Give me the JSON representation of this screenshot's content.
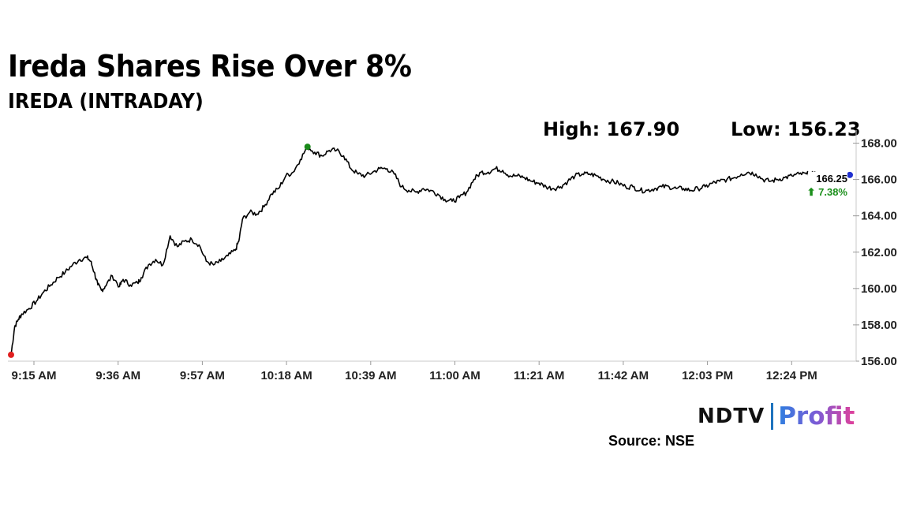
{
  "header": {
    "title": "Ireda Shares Rise Over 8%",
    "subtitle": "IREDA (INTRADAY)"
  },
  "stats": {
    "high": "High: 167.90",
    "low": "Low: 156.23"
  },
  "chart_data": {
    "type": "line",
    "title": "IREDA (INTRADAY)",
    "xlabel": "",
    "ylabel": "",
    "x_ticks": [
      "9:15 AM",
      "9:36 AM",
      "9:57 AM",
      "10:18 AM",
      "10:39 AM",
      "11:00 AM",
      "11:21 AM",
      "11:42 AM",
      "12:03 PM",
      "12:24 PM"
    ],
    "x_range_minutes": [
      0,
      232
    ],
    "ylim": [
      156,
      168.5
    ],
    "y_ticks": [
      156,
      158,
      160,
      162,
      164,
      166,
      168
    ],
    "y_tick_labels": [
      "156.00",
      "158.00",
      "160.00",
      "162.00",
      "164.00",
      "166.00",
      "168.00"
    ],
    "series": [
      {
        "name": "IREDA",
        "minutes": [
          0,
          1,
          2,
          3,
          5,
          7,
          9,
          11,
          13,
          15,
          17,
          19,
          21,
          22,
          23,
          24,
          25,
          26,
          28,
          30,
          31,
          33,
          35,
          36,
          38,
          40,
          42,
          44,
          46,
          48,
          50,
          52,
          54,
          56,
          58,
          60,
          62,
          63,
          64,
          66,
          68,
          70,
          72,
          74,
          76,
          78,
          80,
          82,
          84,
          86,
          88,
          90,
          92,
          94,
          96,
          98,
          100,
          102,
          104,
          106,
          108,
          110,
          112,
          114,
          116,
          118,
          120,
          122,
          124,
          126,
          128,
          130,
          132,
          134,
          136,
          138,
          140,
          142,
          144,
          146,
          148,
          150,
          152,
          154,
          156,
          158,
          160,
          162,
          164,
          166,
          168,
          170,
          172,
          174,
          176,
          178,
          180,
          182,
          184,
          186,
          188,
          190,
          192,
          194,
          196,
          198,
          200,
          202,
          204,
          206,
          208,
          210,
          212,
          214,
          216,
          218,
          220,
          222,
          224,
          226,
          228,
          229,
          230,
          231,
          232
        ],
        "values": [
          156.35,
          157.9,
          158.3,
          158.6,
          158.9,
          159.3,
          159.8,
          160.2,
          160.6,
          160.9,
          161.3,
          161.6,
          161.7,
          161.5,
          160.9,
          160.2,
          159.9,
          160.1,
          160.7,
          160.1,
          160.5,
          160.2,
          160.3,
          160.6,
          161.3,
          161.6,
          161.3,
          162.9,
          162.3,
          162.6,
          162.7,
          162.4,
          161.5,
          161.3,
          161.5,
          161.8,
          162.1,
          162.6,
          163.8,
          164.2,
          164.1,
          164.5,
          165.2,
          165.5,
          166.2,
          166.4,
          167.1,
          167.8,
          167.5,
          167.3,
          167.6,
          167.6,
          167.3,
          166.6,
          166.3,
          166.2,
          166.4,
          166.6,
          166.6,
          166.3,
          165.6,
          165.4,
          165.3,
          165.5,
          165.4,
          165.2,
          164.9,
          164.8,
          165.0,
          165.3,
          166.0,
          166.4,
          166.4,
          166.6,
          166.5,
          166.2,
          166.2,
          166.1,
          165.9,
          165.8,
          165.6,
          165.5,
          165.6,
          165.9,
          166.2,
          166.3,
          166.3,
          166.2,
          166.0,
          165.9,
          165.8,
          165.6,
          165.6,
          165.4,
          165.4,
          165.5,
          165.6,
          165.6,
          165.5,
          165.5,
          165.4,
          165.5,
          165.6,
          165.8,
          165.9,
          166.0,
          166.1,
          166.3,
          166.4,
          166.3,
          166.0,
          165.9,
          166.0,
          166.1,
          166.2,
          166.3,
          166.3,
          166.3,
          166.2,
          166.1,
          166.1,
          166.2,
          166.3,
          166.2,
          166.25
        ]
      }
    ],
    "markers": [
      {
        "label": "open",
        "minute": 0,
        "value": 156.35,
        "color": "#e02020"
      },
      {
        "label": "high",
        "minute": 82,
        "value": 167.8,
        "color": "#1a8a1a"
      },
      {
        "label": "last",
        "minute": 232,
        "value": 166.25,
        "color": "#2030d0"
      }
    ],
    "last_label": "166.25",
    "change_label": "⬆ 7.38%",
    "line_color": "#000000",
    "grid": false
  },
  "footer": {
    "logo_left": "NDTV",
    "logo_right": "Profit",
    "source": "Source: NSE"
  }
}
